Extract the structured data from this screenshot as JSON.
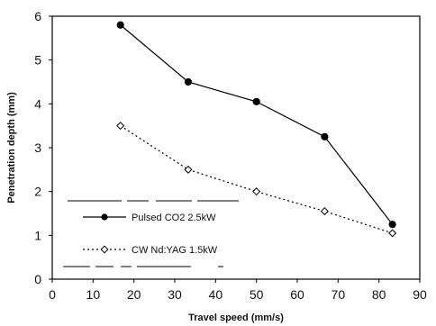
{
  "chart_data": {
    "type": "line",
    "title": "",
    "xlabel": "Travel speed (mm/s)",
    "ylabel": "Penetration depth (mm)",
    "xlim": [
      0,
      90
    ],
    "ylim": [
      0,
      6
    ],
    "xticks": [
      "0",
      "10",
      "20",
      "30",
      "40",
      "50",
      "60",
      "70",
      "80",
      "90"
    ],
    "yticks": [
      "0",
      "1",
      "2",
      "3",
      "4",
      "5",
      "6"
    ],
    "grid": false,
    "legend_position": "lower-left",
    "series": [
      {
        "name": "Pulsed CO2 2.5kW",
        "x": [
          16.7,
          33.3,
          50,
          66.7,
          83.3
        ],
        "y": [
          5.8,
          4.5,
          4.05,
          3.25,
          1.25
        ],
        "color": "#000000",
        "line_style": "solid",
        "marker": "filled-circle"
      },
      {
        "name": "CW Nd:YAG 1.5kW",
        "x": [
          16.7,
          33.3,
          50,
          66.7,
          83.3
        ],
        "y": [
          3.5,
          2.5,
          2.0,
          1.55,
          1.05
        ],
        "color": "#000000",
        "line_style": "dotted",
        "marker": "open-diamond"
      }
    ]
  }
}
